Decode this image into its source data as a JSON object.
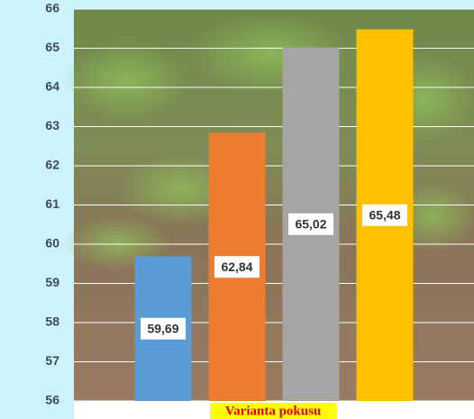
{
  "chart_data": {
    "type": "bar",
    "categories": [
      null,
      null,
      null,
      null
    ],
    "series": [
      {
        "values": [
          59.69,
          62.84,
          65.02,
          65.48
        ],
        "value_labels": [
          "59,69",
          "62,84",
          "65,02",
          "65,48"
        ],
        "colors": [
          "#5b9bd5",
          "#ed7d31",
          "#a5a5a5",
          "#ffc000"
        ]
      }
    ],
    "x_label": "Varianta pokusu",
    "ylim": [
      56,
      66
    ],
    "yticks": [
      56,
      57,
      58,
      59,
      60,
      61,
      62,
      63,
      64,
      65,
      66
    ],
    "grid": true
  }
}
